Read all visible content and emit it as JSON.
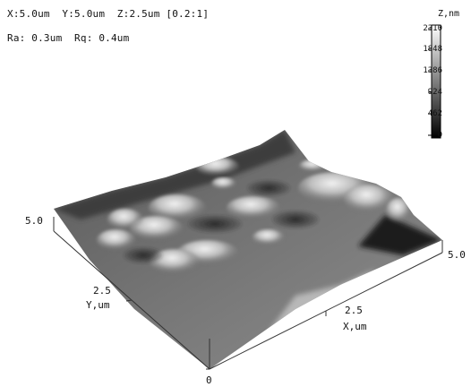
{
  "header": {
    "line1": "X:5.0um  Y:5.0um  Z:2.5um [0.2:1]",
    "line2": "Ra: 0.3um  Rq: 0.4um"
  },
  "colorbar": {
    "title": "Z,nm",
    "ticks": [
      "2310",
      "1848",
      "1386",
      "924",
      "462",
      "0"
    ]
  },
  "axes": {
    "y_top": "5.0",
    "y_mid": "2.5",
    "y_name": "Y,um",
    "x_mid": "2.5",
    "x_name": "X,um",
    "x_right": "5.0",
    "origin": "0"
  }
}
